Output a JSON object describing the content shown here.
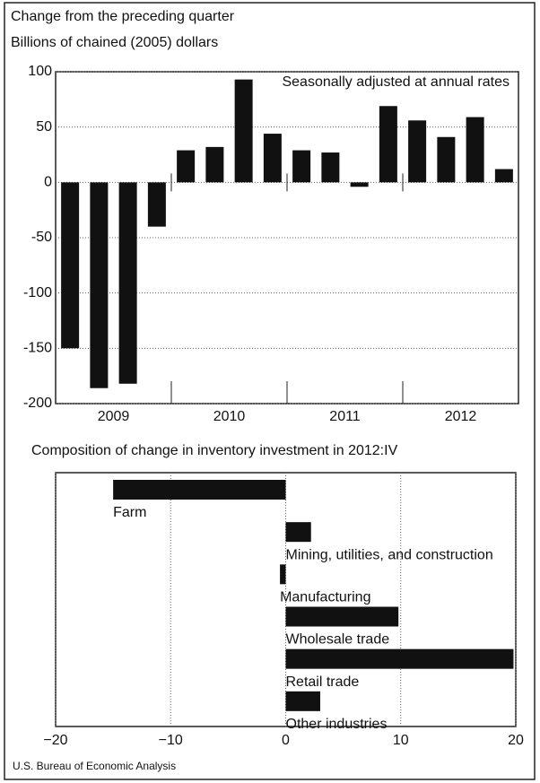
{
  "chart_data": [
    {
      "type": "bar",
      "title": "Change from the preceding quarter",
      "subtitle": "Billions of chained (2005) dollars",
      "annotation": "Seasonally adjusted at annual rates",
      "categories": [
        null,
        null,
        null,
        null,
        null,
        null,
        null,
        null,
        null,
        null,
        null,
        null,
        null,
        null,
        null,
        null
      ],
      "x_group_labels": [
        "2009",
        "2010",
        "2011",
        "2012"
      ],
      "values": [
        -150,
        -186,
        -182,
        -40,
        29,
        32,
        93,
        44,
        29,
        27,
        -4,
        69,
        56,
        41,
        59,
        12
      ],
      "color": "#111111",
      "ylim": [
        -200,
        100
      ],
      "yticks": [
        -200,
        -150,
        -100,
        -50,
        0,
        50,
        100
      ],
      "grid": true
    },
    {
      "type": "hbar",
      "title": "Composition of change in inventory investment in 2012:IV",
      "categories": [
        "Farm",
        "Mining, utilities, and construction",
        "Manufacturing",
        "Wholesale trade",
        "Retail trade",
        "Other industries"
      ],
      "values": [
        -15,
        2.2,
        -0.5,
        9.8,
        19.8,
        3
      ],
      "color": "#111111",
      "xlim": [
        -20,
        20
      ],
      "xticks": [
        {
          "value": -20,
          "label": "−20"
        },
        {
          "value": -10,
          "label": "−10"
        },
        0,
        10,
        20
      ],
      "grid": true,
      "source": "U.S. Bureau of Economic Analysis"
    }
  ]
}
